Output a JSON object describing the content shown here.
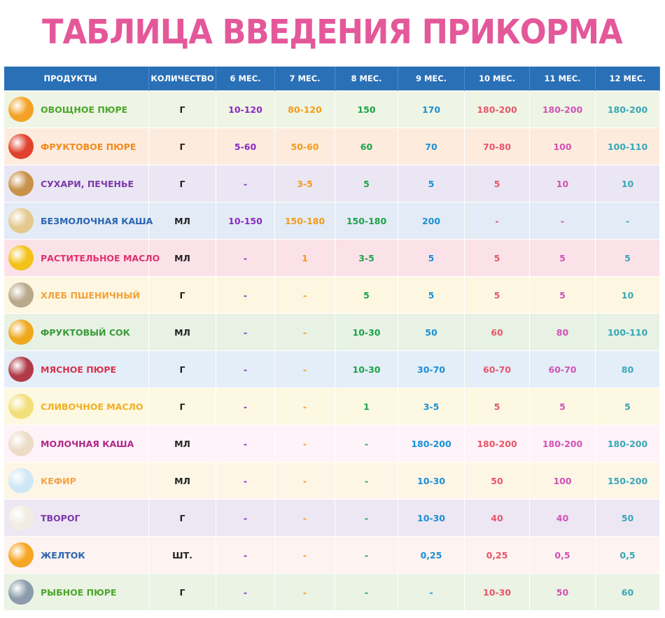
{
  "title": "ТАБЛИЦА ВВЕДЕНИЯ ПРИКОРМА",
  "table": {
    "headers": [
      "ПРОДУКТЫ",
      "КОЛИЧЕСТВО",
      "6 МЕС.",
      "7 МЕС.",
      "8 МЕС.",
      "9 МЕС.",
      "10 МЕС.",
      "11 МЕС.",
      "12 МЕС."
    ],
    "rows": [
      {
        "name": "ОВОЩНОЕ ПЮРЕ",
        "unit": "Г",
        "values": [
          "10-120",
          "80-120",
          "150",
          "170",
          "180-200",
          "180-200",
          "180-200"
        ],
        "name_color": "#4aa62b",
        "bg": "#eef5e4",
        "icon": "vegetable-puree-icon",
        "icon_color": "#f3a227"
      },
      {
        "name": "ФРУКТОВОЕ ПЮРЕ",
        "unit": "Г",
        "values": [
          "5-60",
          "50-60",
          "60",
          "70",
          "70-80",
          "100",
          "100-110"
        ],
        "name_color": "#f08a1c",
        "bg": "#fdecde",
        "icon": "fruit-puree-jar-icon",
        "icon_color": "#e0422e"
      },
      {
        "name": "СУХАРИ, ПЕЧЕНЬЕ",
        "unit": "Г",
        "values": [
          "-",
          "3-5",
          "5",
          "5",
          "5",
          "10",
          "10"
        ],
        "name_color": "#7a3aa8",
        "bg": "#ebe6f3",
        "icon": "crackers-icon",
        "icon_color": "#c8924a"
      },
      {
        "name": "БЕЗМОЛОЧНАЯ КАША",
        "unit": "МЛ",
        "values": [
          "10-150",
          "150-180",
          "150-180",
          "200",
          "-",
          "-",
          "-"
        ],
        "name_color": "#2a64b0",
        "bg": "#e3ebf6",
        "icon": "dairy-free-porridge-icon",
        "icon_color": "#e3c98e"
      },
      {
        "name": "РАСТИТЕЛЬНОЕ МАСЛО",
        "unit": "МЛ",
        "values": [
          "-",
          "1",
          "3-5",
          "5",
          "5",
          "5",
          "5"
        ],
        "name_color": "#e0306e",
        "bg": "#fbe2e8",
        "icon": "sunflower-oil-icon",
        "icon_color": "#f2c218"
      },
      {
        "name": "ХЛЕБ ПШЕНИЧНЫЙ",
        "unit": "Г",
        "values": [
          "-",
          "-",
          "5",
          "5",
          "5",
          "5",
          "10"
        ],
        "name_color": "#f3a13a",
        "bg": "#fdf7e2",
        "icon": "wheat-bread-icon",
        "icon_color": "#b8a98a"
      },
      {
        "name": "ФРУКТОВЫЙ СОК",
        "unit": "МЛ",
        "values": [
          "-",
          "-",
          "10-30",
          "50",
          "60",
          "80",
          "100-110"
        ],
        "name_color": "#3a9a3a",
        "bg": "#e7f2e4",
        "icon": "fruit-juice-jar-icon",
        "icon_color": "#f0a81e"
      },
      {
        "name": "МЯСНОЕ ПЮРЕ",
        "unit": "Г",
        "values": [
          "-",
          "-",
          "10-30",
          "30-70",
          "60-70",
          "60-70",
          "80"
        ],
        "name_color": "#d6334f",
        "bg": "#e3eef8",
        "icon": "meat-puree-icon",
        "icon_color": "#b03a48"
      },
      {
        "name": "СЛИВОЧНОЕ МАСЛО",
        "unit": "Г",
        "values": [
          "-",
          "-",
          "1",
          "3-5",
          "5",
          "5",
          "5"
        ],
        "name_color": "#f0b020",
        "bg": "#fdf8e1",
        "icon": "butter-icon",
        "icon_color": "#f3df7a"
      },
      {
        "name": "МОЛОЧНАЯ КАША",
        "unit": "МЛ",
        "values": [
          "-",
          "-",
          "-",
          "180-200",
          "180-200",
          "180-200",
          "180-200"
        ],
        "name_color": "#b0288a",
        "bg": "#fdf3f8",
        "icon": "milk-porridge-icon",
        "icon_color": "#ecdcc6"
      },
      {
        "name": "КЕФИР",
        "unit": "МЛ",
        "values": [
          "-",
          "-",
          "-",
          "10-30",
          "50",
          "100",
          "150-200"
        ],
        "name_color": "#f2a24a",
        "bg": "#fdf6e6",
        "icon": "kefir-glass-icon",
        "icon_color": "#cfe7f5"
      },
      {
        "name": "ТВОРОГ",
        "unit": "Г",
        "values": [
          "-",
          "-",
          "-",
          "10-30",
          "40",
          "40",
          "50"
        ],
        "name_color": "#7a3aa8",
        "bg": "#ede6f3",
        "icon": "cottage-cheese-icon",
        "icon_color": "#f1ede2"
      },
      {
        "name": "ЖЕЛТОК",
        "unit": "ШТ.",
        "values": [
          "-",
          "-",
          "-",
          "0,25",
          "0,25",
          "0,5",
          "0,5"
        ],
        "name_color": "#2a64b0",
        "bg": "#fdf3f0",
        "icon": "egg-yolk-icon",
        "icon_color": "#f6a623"
      },
      {
        "name": "РЫБНОЕ ПЮРЕ",
        "unit": "Г",
        "values": [
          "-",
          "-",
          "-",
          "-",
          "10-30",
          "50",
          "60"
        ],
        "name_color": "#4aa62b",
        "bg": "#eaf3e4",
        "icon": "fish-icon",
        "icon_color": "#8c9cab"
      }
    ],
    "column_colors": [
      "#8a2ac4",
      "#f39a1b",
      "#1da247",
      "#1a8fd5",
      "#e8566a",
      "#d152b5",
      "#3aa6b7"
    ],
    "header_bg": "#2a70b7"
  }
}
